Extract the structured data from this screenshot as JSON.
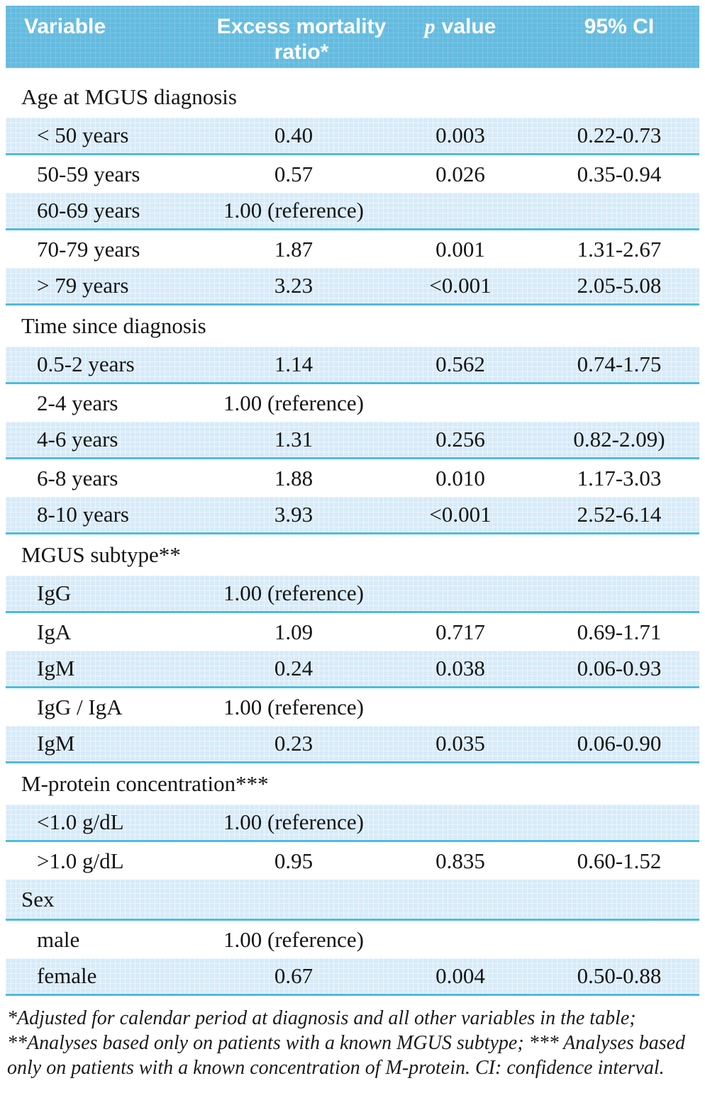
{
  "colors": {
    "header_bg": "#64bbdf",
    "row_shaded_bg": "#d7ebf8",
    "row_border": "#4fbadf",
    "header_text": "#ffffff",
    "body_text": "#151515"
  },
  "table": {
    "header": {
      "variable": "Variable",
      "ratio": "Excess mortality ratio*",
      "p_italic": "p",
      "p_rest": "value",
      "ci": "95% CI"
    },
    "rows": [
      {
        "type": "section",
        "shaded": false,
        "label": "Age at MGUS diagnosis"
      },
      {
        "type": "data",
        "shaded": true,
        "cells": [
          "< 50 years",
          "0.40",
          "0.003",
          "0.22-0.73"
        ]
      },
      {
        "type": "data",
        "shaded": false,
        "cells": [
          "50-59 years",
          "0.57",
          "0.026",
          "0.35-0.94"
        ]
      },
      {
        "type": "data",
        "shaded": true,
        "cells": [
          "60-69 years",
          "1.00 (reference)",
          "",
          ""
        ]
      },
      {
        "type": "data",
        "shaded": false,
        "cells": [
          "70-79 years",
          "1.87",
          "0.001",
          "1.31-2.67"
        ]
      },
      {
        "type": "data",
        "shaded": true,
        "cells": [
          "> 79 years",
          "3.23",
          "<0.001",
          "2.05-5.08"
        ]
      },
      {
        "type": "section",
        "shaded": false,
        "label": "Time since diagnosis"
      },
      {
        "type": "data",
        "shaded": true,
        "cells": [
          "0.5-2 years",
          "1.14",
          "0.562",
          "0.74-1.75"
        ]
      },
      {
        "type": "data",
        "shaded": false,
        "cells": [
          "2-4 years",
          "1.00 (reference)",
          "",
          ""
        ]
      },
      {
        "type": "data",
        "shaded": true,
        "cells": [
          "4-6 years",
          "1.31",
          "0.256",
          "0.82-2.09)"
        ]
      },
      {
        "type": "data",
        "shaded": false,
        "cells": [
          "6-8 years",
          "1.88",
          "0.010",
          "1.17-3.03"
        ]
      },
      {
        "type": "data",
        "shaded": true,
        "cells": [
          "8-10 years",
          "3.93",
          "<0.001",
          "2.52-6.14"
        ]
      },
      {
        "type": "section",
        "shaded": false,
        "label": "MGUS subtype**"
      },
      {
        "type": "data",
        "shaded": true,
        "cells": [
          "IgG",
          "1.00 (reference)",
          "",
          ""
        ]
      },
      {
        "type": "data",
        "shaded": false,
        "cells": [
          "IgA",
          "1.09",
          "0.717",
          "0.69-1.71"
        ]
      },
      {
        "type": "data",
        "shaded": true,
        "cells": [
          "IgM",
          "0.24",
          "0.038",
          "0.06-0.93"
        ]
      },
      {
        "type": "data",
        "shaded": false,
        "cells": [
          "IgG / IgA",
          "1.00 (reference)",
          "",
          ""
        ]
      },
      {
        "type": "data",
        "shaded": true,
        "cells": [
          "IgM",
          "0.23",
          "0.035",
          "0.06-0.90"
        ]
      },
      {
        "type": "section",
        "shaded": false,
        "label": "M-protein concentration***"
      },
      {
        "type": "data",
        "shaded": true,
        "cells": [
          "<1.0 g/dL",
          "1.00 (reference)",
          "",
          ""
        ]
      },
      {
        "type": "data",
        "shaded": false,
        "cells": [
          ">1.0 g/dL",
          "0.95",
          "0.835",
          "0.60-1.52"
        ]
      },
      {
        "type": "section",
        "shaded": true,
        "label": "Sex"
      },
      {
        "type": "data",
        "shaded": false,
        "cells": [
          "male",
          "1.00 (reference)",
          "",
          ""
        ]
      },
      {
        "type": "data",
        "shaded": true,
        "cells": [
          "female",
          "0.67",
          "0.004",
          "0.50-0.88"
        ]
      }
    ]
  },
  "footnote": {
    "text": "*Adjusted for calendar period at diagnosis and all other variables in the table; **Analyses based only on patients with a known MGUS subtype; *** Analyses based only on patients with a known concentration of M-protein. CI: confidence interval."
  }
}
